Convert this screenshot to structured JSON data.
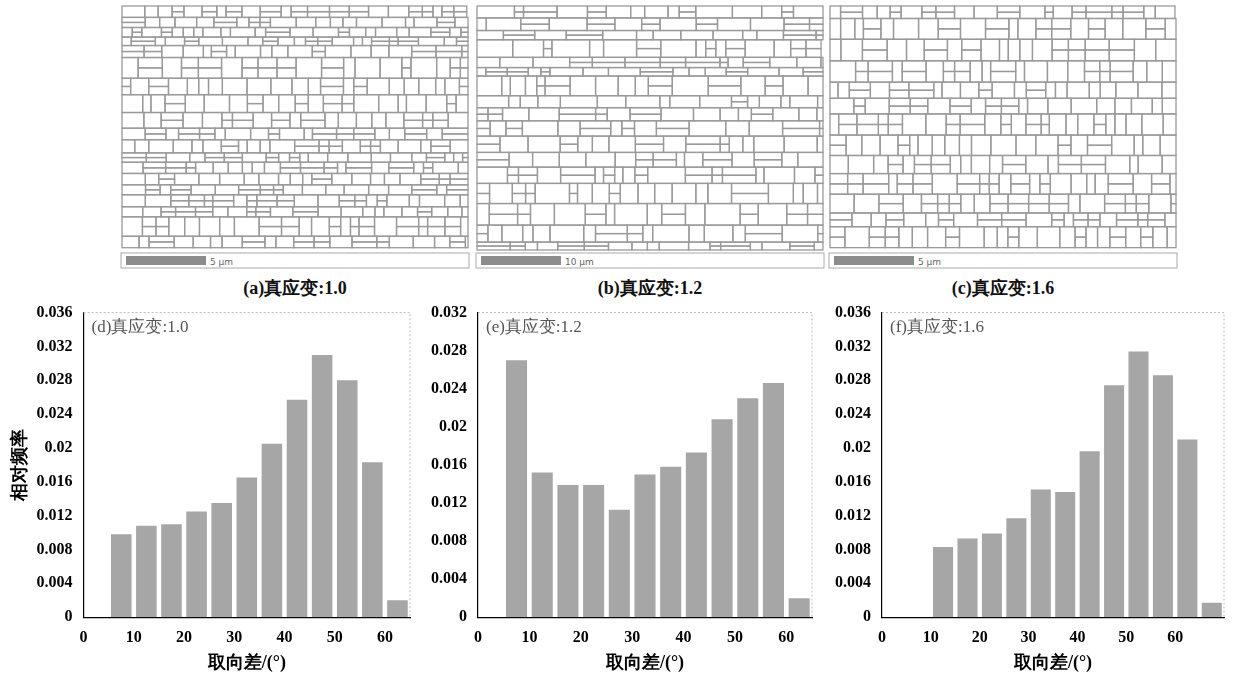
{
  "maps": [
    {
      "caption": "(a)真应变:1.0",
      "scale_bar": "5 μm"
    },
    {
      "caption": "(b)真应变:1.2",
      "scale_bar": "10 μm"
    },
    {
      "caption": "(c)真应变:1.6",
      "scale_bar": "5 μm"
    }
  ],
  "chart_data": [
    {
      "type": "histogram",
      "title": "(d)真应变:1.0",
      "x_label": "取向差/(°)",
      "y_label": "相对频率",
      "bins": [
        5,
        10,
        15,
        20,
        25,
        30,
        35,
        40,
        45,
        50,
        55,
        60,
        65
      ],
      "values": [
        0.0098,
        0.0108,
        0.011,
        0.0125,
        0.0135,
        0.0165,
        0.0205,
        0.0257,
        0.031,
        0.028,
        0.0183,
        0.002
      ],
      "color": "#a6a6a6",
      "xlim": [
        0,
        65
      ],
      "xticks": [
        0,
        10,
        20,
        30,
        40,
        50,
        60
      ],
      "ylim": [
        0,
        0.036
      ],
      "yticks": [
        0,
        0.004,
        0.008,
        0.012,
        0.016,
        0.02,
        0.024,
        0.028,
        0.032,
        0.036
      ],
      "grid": false
    },
    {
      "type": "histogram",
      "title": "(e)真应变:1.2",
      "x_label": "取向差/(°)",
      "bins": [
        5,
        10,
        15,
        20,
        25,
        30,
        35,
        40,
        45,
        50,
        55,
        60,
        65
      ],
      "values": [
        0.027,
        0.0152,
        0.0139,
        0.0139,
        0.0113,
        0.015,
        0.0158,
        0.0173,
        0.0208,
        0.023,
        0.0246,
        0.002
      ],
      "color": "#a6a6a6",
      "xlim": [
        0,
        65
      ],
      "xticks": [
        0,
        10,
        20,
        30,
        40,
        50,
        60
      ],
      "ylim": [
        0,
        0.032
      ],
      "yticks": [
        0,
        0.004,
        0.008,
        0.012,
        0.016,
        0.02,
        0.024,
        0.028,
        0.032
      ],
      "grid": false
    },
    {
      "type": "histogram",
      "title": "(f)真应变:1.6",
      "x_label": "取向差/(°)",
      "bins": [
        10,
        15,
        20,
        25,
        30,
        35,
        40,
        45,
        50,
        55,
        60,
        65,
        70
      ],
      "values": [
        0.0083,
        0.0093,
        0.0099,
        0.0117,
        0.0151,
        0.0148,
        0.0196,
        0.0274,
        0.0314,
        0.0286,
        0.021,
        0.0017
      ],
      "color": "#a6a6a6",
      "xlim": [
        0,
        70
      ],
      "xticks": [
        0,
        10,
        20,
        30,
        40,
        50,
        60
      ],
      "ylim": [
        0,
        0.036
      ],
      "yticks": [
        0,
        0.004,
        0.008,
        0.012,
        0.016,
        0.02,
        0.024,
        0.028,
        0.032,
        0.036
      ],
      "grid": false
    }
  ]
}
